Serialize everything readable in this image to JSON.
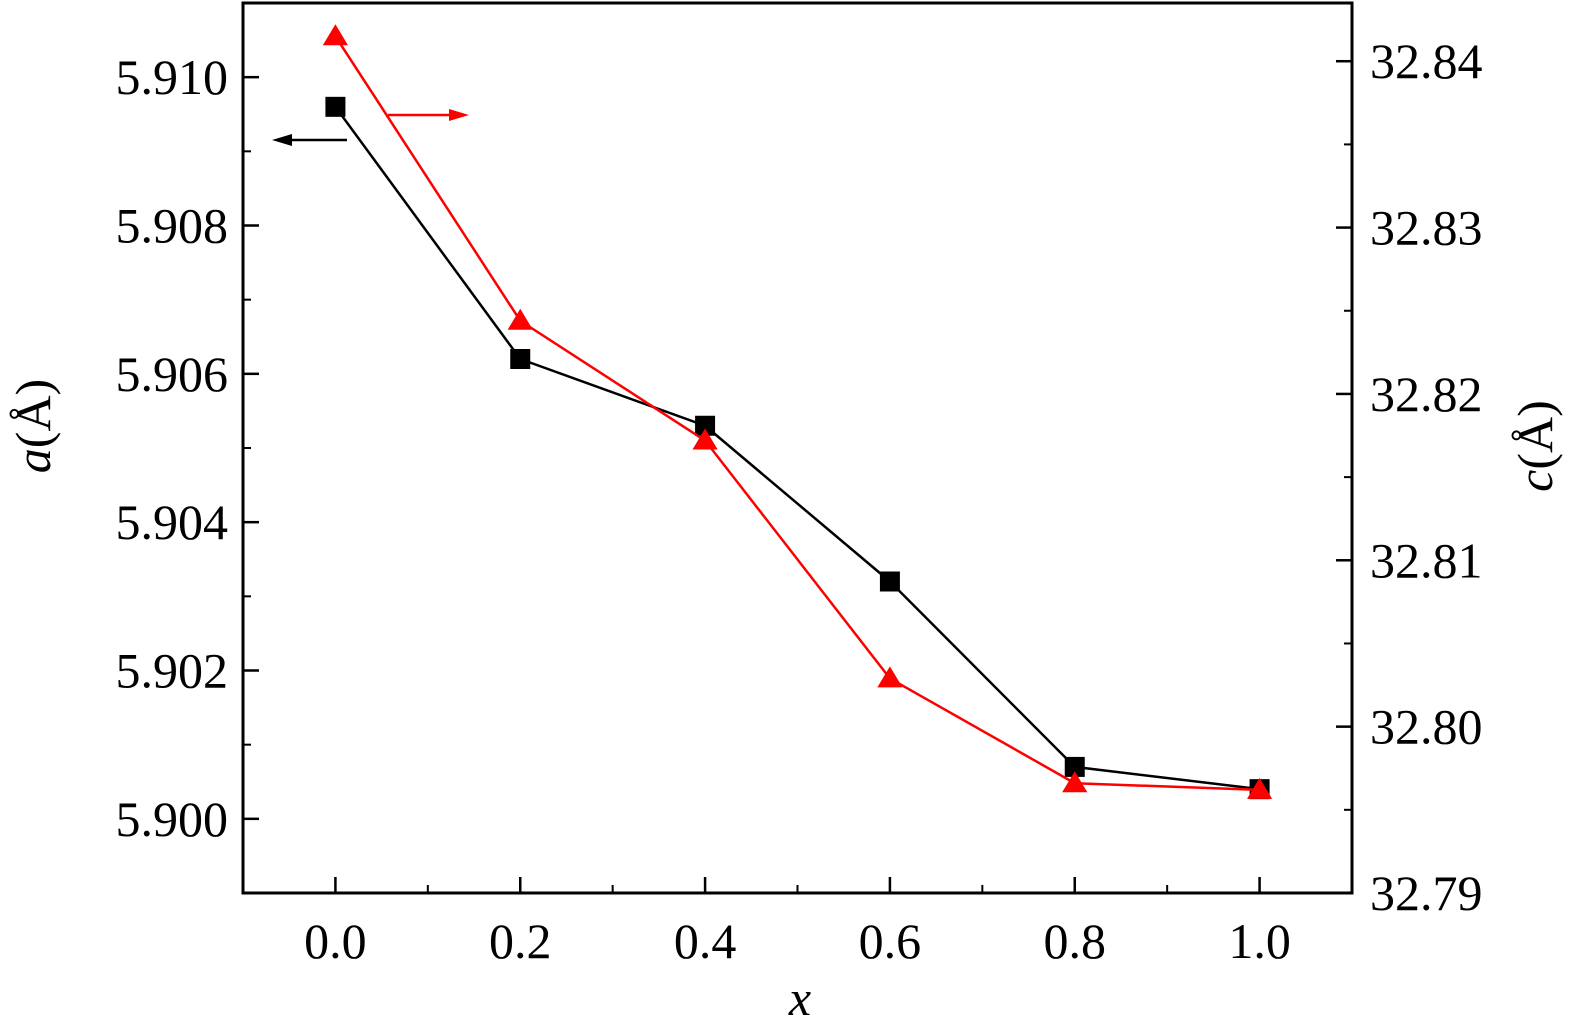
{
  "chart_data": {
    "type": "line",
    "xlabel": {
      "var": "x",
      "unit": ""
    },
    "ylabel_left": {
      "var": "a",
      "unit": "(Å)"
    },
    "ylabel_right": {
      "var": "c",
      "unit": "(Å)"
    },
    "x": [
      0.0,
      0.2,
      0.4,
      0.6,
      0.8,
      1.0
    ],
    "x_ticks": [
      "0.0",
      "0.2",
      "0.4",
      "0.6",
      "0.8",
      "1.0"
    ],
    "xlim": [
      -0.1,
      1.1
    ],
    "ylim_left": [
      5.899,
      5.911
    ],
    "ylim_right": [
      32.79,
      32.8435
    ],
    "y_left_ticks": [
      "5.900",
      "5.902",
      "5.904",
      "5.906",
      "5.908",
      "5.910"
    ],
    "y_right_ticks": [
      "32.79",
      "32.80",
      "32.81",
      "32.82",
      "32.83",
      "32.84"
    ],
    "series": [
      {
        "axis": "left",
        "marker": "square",
        "color": "#000000",
        "values": [
          5.9096,
          5.9062,
          5.9053,
          5.9032,
          5.9007,
          5.9004
        ]
      },
      {
        "axis": "right",
        "marker": "triangle",
        "color": "#ff0000",
        "values": [
          32.8415,
          32.8244,
          32.8172,
          32.8029,
          32.7966,
          32.7962
        ]
      }
    ],
    "grid": false,
    "annotations": [
      {
        "type": "arrow",
        "direction": "left",
        "points_to": "left-axis",
        "color": "#000000"
      },
      {
        "type": "arrow",
        "direction": "right",
        "points_to": "right-axis",
        "color": "#ff0000"
      }
    ]
  }
}
